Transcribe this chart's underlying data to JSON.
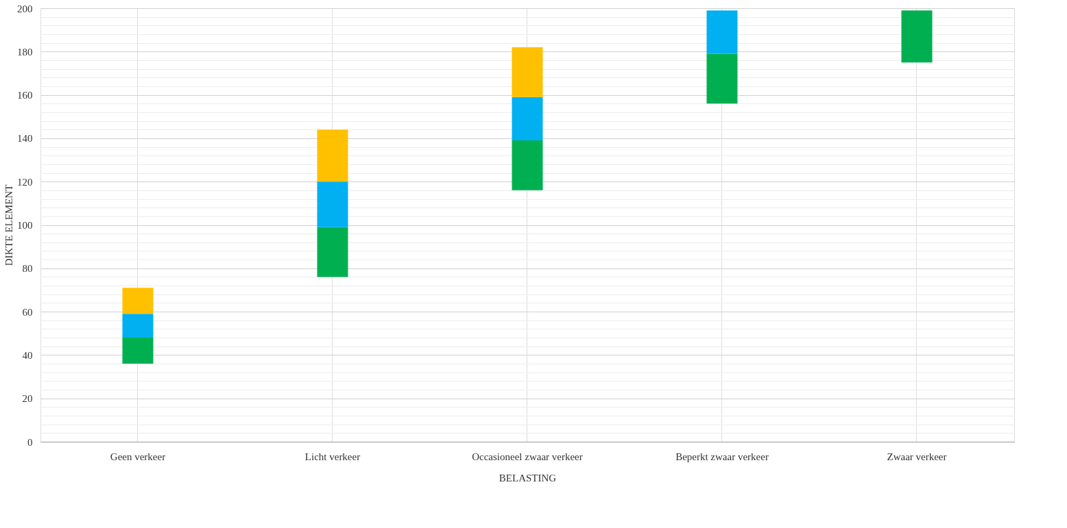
{
  "chart_data": {
    "type": "bar",
    "xlabel": "BELASTING",
    "ylabel": "DIKTE ELEMENT",
    "categories": [
      "Geen verkeer",
      "Licht verkeer",
      "Occasioneel zwaar verkeer",
      "Beperkt zwaar verkeer",
      "Zwaar verkeer"
    ],
    "series": [
      {
        "color": "#00b050",
        "base": [
          36,
          76,
          116,
          156,
          175
        ],
        "values": [
          12,
          23,
          23,
          23,
          24
        ]
      },
      {
        "color": "#00b0f0",
        "base": [
          48,
          99,
          139,
          179,
          null
        ],
        "values": [
          11,
          21,
          20,
          20,
          null
        ]
      },
      {
        "color": "#ffc000",
        "base": [
          59,
          120,
          159,
          null,
          null
        ],
        "values": [
          12,
          24,
          23,
          null,
          null
        ]
      }
    ],
    "ylim": [
      0,
      200
    ],
    "yticks": [
      0,
      {
        "value": 4,
        "label": null
      },
      {
        "value": 8,
        "label": null
      },
      {
        "value": 12,
        "label": null
      },
      {
        "value": 16,
        "label": null
      },
      20,
      {
        "value": 24,
        "label": null
      },
      {
        "value": 28,
        "label": null
      },
      {
        "value": 32,
        "label": null
      },
      {
        "value": 36,
        "label": null
      },
      40,
      {
        "value": 44,
        "label": null
      },
      {
        "value": 48,
        "label": null
      },
      {
        "value": 52,
        "label": null
      },
      {
        "value": 56,
        "label": null
      },
      60,
      {
        "value": 64,
        "label": null
      },
      {
        "value": 68,
        "label": null
      },
      {
        "value": 72,
        "label": null
      },
      {
        "value": 76,
        "label": null
      },
      80,
      {
        "value": 84,
        "label": null
      },
      {
        "value": 88,
        "label": null
      },
      {
        "value": 92,
        "label": null
      },
      {
        "value": 96,
        "label": null
      },
      100,
      {
        "value": 104,
        "label": null
      },
      {
        "value": 108,
        "label": null
      },
      {
        "value": 112,
        "label": null
      },
      {
        "value": 116,
        "label": null
      },
      120,
      {
        "value": 124,
        "label": null
      },
      {
        "value": 128,
        "label": null
      },
      {
        "value": 132,
        "label": null
      },
      {
        "value": 136,
        "label": null
      },
      140,
      {
        "value": 144,
        "label": null
      },
      {
        "value": 148,
        "label": null
      },
      {
        "value": 152,
        "label": null
      },
      {
        "value": 156,
        "label": null
      },
      160,
      {
        "value": 164,
        "label": null
      },
      {
        "value": 168,
        "label": null
      },
      {
        "value": 172,
        "label": null
      },
      {
        "value": 176,
        "label": null
      },
      180,
      {
        "value": 184,
        "label": null
      },
      {
        "value": 188,
        "label": null
      },
      {
        "value": 192,
        "label": null
      },
      {
        "value": 196,
        "label": null
      },
      200
    ],
    "grid": true
  }
}
